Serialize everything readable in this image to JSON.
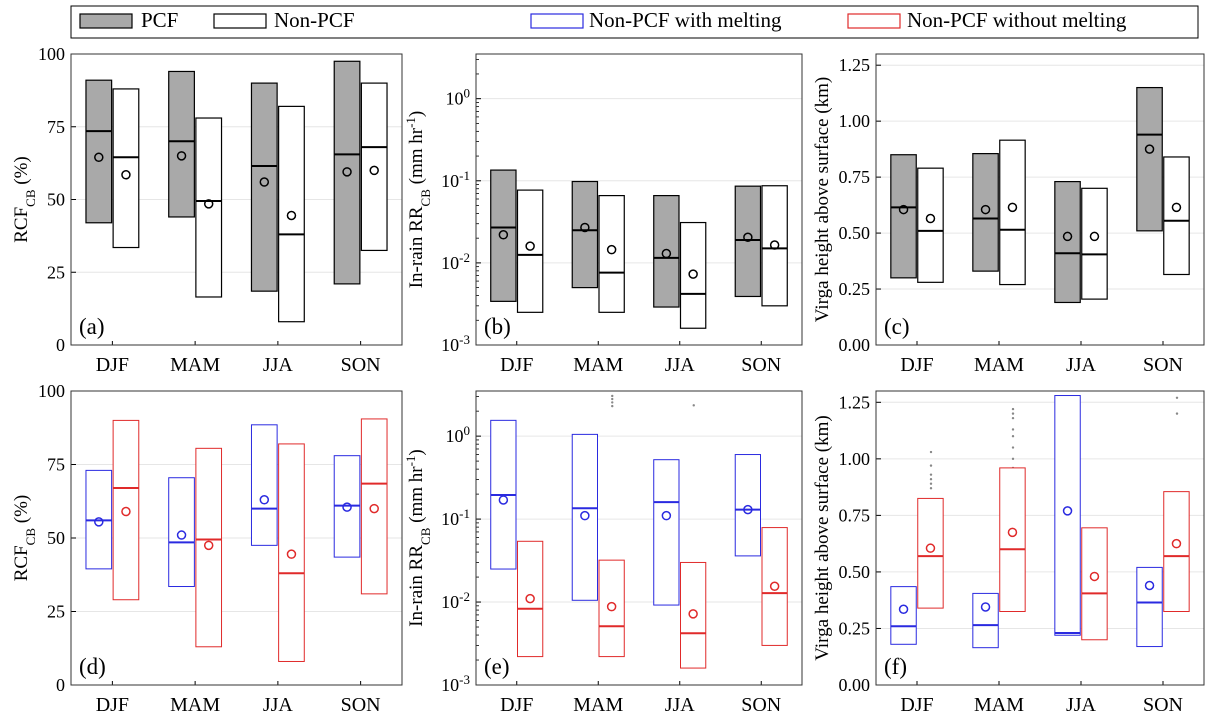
{
  "legend": {
    "items": [
      {
        "label": "PCF",
        "fill": "#a9a9a9",
        "stroke": "#000000"
      },
      {
        "label": "Non-PCF",
        "fill": "#ffffff",
        "stroke": "#000000"
      },
      {
        "label": "Non-PCF with melting",
        "fill": "#ffffff",
        "stroke": "#2a2ae0"
      },
      {
        "label": "Non-PCF without melting",
        "fill": "#ffffff",
        "stroke": "#e02a2a"
      }
    ]
  },
  "colors": {
    "pcf_fill": "#a9a9a9",
    "black": "#000000",
    "blue": "#2a2ae0",
    "red": "#e02a2a",
    "outlier": "#888888"
  },
  "chart_data": [
    {
      "id": "a",
      "type": "box",
      "panel_label": "(a)",
      "ylabel": "RCF",
      "ylabel_sub": "CB",
      "ylabel_suffix": " (%)",
      "scale": "linear",
      "ylim": [
        0,
        100
      ],
      "yticks": [
        {
          "v": 0,
          "t": "0"
        },
        {
          "v": 25,
          "t": "25"
        },
        {
          "v": 50,
          "t": "50"
        },
        {
          "v": 75,
          "t": "75"
        },
        {
          "v": 100,
          "t": "100"
        }
      ],
      "categories": [
        "DJF",
        "MAM",
        "JJA",
        "SON"
      ],
      "series": [
        {
          "name": "PCF",
          "fill": "#a9a9a9",
          "stroke": "#000000",
          "boxes": [
            {
              "q1": 42,
              "q3": 91,
              "median": 73.5,
              "mean": 64.5
            },
            {
              "q1": 44,
              "q3": 94,
              "median": 70,
              "mean": 65
            },
            {
              "q1": 18.5,
              "q3": 90,
              "median": 61.5,
              "mean": 56
            },
            {
              "q1": 21,
              "q3": 97.5,
              "median": 65.5,
              "mean": 59.5
            }
          ]
        },
        {
          "name": "Non-PCF",
          "fill": "#ffffff",
          "stroke": "#000000",
          "boxes": [
            {
              "q1": 33.5,
              "q3": 88,
              "median": 64.5,
              "mean": 58.5
            },
            {
              "q1": 16.5,
              "q3": 78,
              "median": 49.5,
              "mean": 48.5
            },
            {
              "q1": 8,
              "q3": 82,
              "median": 38,
              "mean": 44.5
            },
            {
              "q1": 32.5,
              "q3": 90,
              "median": 68,
              "mean": 60
            }
          ]
        }
      ]
    },
    {
      "id": "b",
      "type": "box",
      "panel_label": "(b)",
      "ylabel": "In-rain RR",
      "ylabel_sub": "CB",
      "ylabel_suffix": " (mm hr",
      "ylabel_sup": "-1",
      "ylabel_end": ")",
      "scale": "log",
      "ylim": [
        0.001,
        3.5
      ],
      "yticks": [
        {
          "v": 0.001,
          "t": "10",
          "e": "-3"
        },
        {
          "v": 0.01,
          "t": "10",
          "e": "-2"
        },
        {
          "v": 0.1,
          "t": "10",
          "e": "-1"
        },
        {
          "v": 1,
          "t": "10",
          "e": "0"
        }
      ],
      "categories": [
        "DJF",
        "MAM",
        "JJA",
        "SON"
      ],
      "series": [
        {
          "name": "PCF",
          "fill": "#a9a9a9",
          "stroke": "#000000",
          "boxes": [
            {
              "q1": 0.0034,
              "q3": 0.135,
              "median": 0.027,
              "mean": 0.022
            },
            {
              "q1": 0.005,
              "q3": 0.098,
              "median": 0.025,
              "mean": 0.027
            },
            {
              "q1": 0.0029,
              "q3": 0.066,
              "median": 0.0115,
              "mean": 0.013
            },
            {
              "q1": 0.0039,
              "q3": 0.086,
              "median": 0.019,
              "mean": 0.0205
            }
          ]
        },
        {
          "name": "Non-PCF",
          "fill": "#ffffff",
          "stroke": "#000000",
          "boxes": [
            {
              "q1": 0.0025,
              "q3": 0.077,
              "median": 0.0125,
              "mean": 0.016
            },
            {
              "q1": 0.0025,
              "q3": 0.066,
              "median": 0.0076,
              "mean": 0.0145
            },
            {
              "q1": 0.0016,
              "q3": 0.031,
              "median": 0.0042,
              "mean": 0.0073
            },
            {
              "q1": 0.003,
              "q3": 0.087,
              "median": 0.015,
              "mean": 0.0165
            }
          ]
        }
      ]
    },
    {
      "id": "c",
      "type": "box",
      "panel_label": "(c)",
      "ylabel": "Virga height above surface (km)",
      "scale": "linear",
      "ylim": [
        0,
        1.3
      ],
      "yticks": [
        {
          "v": 0,
          "t": "0.00"
        },
        {
          "v": 0.25,
          "t": "0.25"
        },
        {
          "v": 0.5,
          "t": "0.50"
        },
        {
          "v": 0.75,
          "t": "0.75"
        },
        {
          "v": 1.0,
          "t": "1.00"
        },
        {
          "v": 1.25,
          "t": "1.25"
        }
      ],
      "categories": [
        "DJF",
        "MAM",
        "JJA",
        "SON"
      ],
      "series": [
        {
          "name": "PCF",
          "fill": "#a9a9a9",
          "stroke": "#000000",
          "boxes": [
            {
              "q1": 0.3,
              "q3": 0.85,
              "median": 0.615,
              "mean": 0.605
            },
            {
              "q1": 0.33,
              "q3": 0.855,
              "median": 0.565,
              "mean": 0.605
            },
            {
              "q1": 0.19,
              "q3": 0.73,
              "median": 0.41,
              "mean": 0.485
            },
            {
              "q1": 0.51,
              "q3": 1.15,
              "median": 0.94,
              "mean": 0.875
            }
          ]
        },
        {
          "name": "Non-PCF",
          "fill": "#ffffff",
          "stroke": "#000000",
          "boxes": [
            {
              "q1": 0.28,
              "q3": 0.79,
              "median": 0.51,
              "mean": 0.565
            },
            {
              "q1": 0.27,
              "q3": 0.915,
              "median": 0.515,
              "mean": 0.615
            },
            {
              "q1": 0.205,
              "q3": 0.7,
              "median": 0.405,
              "mean": 0.485
            },
            {
              "q1": 0.315,
              "q3": 0.84,
              "median": 0.555,
              "mean": 0.615
            }
          ]
        }
      ]
    },
    {
      "id": "d",
      "type": "box",
      "panel_label": "(d)",
      "ylabel": "RCF",
      "ylabel_sub": "CB",
      "ylabel_suffix": " (%)",
      "scale": "linear",
      "ylim": [
        0,
        100
      ],
      "yticks": [
        {
          "v": 0,
          "t": "0"
        },
        {
          "v": 25,
          "t": "25"
        },
        {
          "v": 50,
          "t": "50"
        },
        {
          "v": 75,
          "t": "75"
        },
        {
          "v": 100,
          "t": "100"
        }
      ],
      "categories": [
        "DJF",
        "MAM",
        "JJA",
        "SON"
      ],
      "series": [
        {
          "name": "Non-PCF with melting",
          "fill": "#ffffff",
          "stroke": "#2a2ae0",
          "boxes": [
            {
              "q1": 39.5,
              "q3": 73,
              "median": 56,
              "mean": 55.5
            },
            {
              "q1": 33.5,
              "q3": 70.5,
              "median": 48.5,
              "mean": 51
            },
            {
              "q1": 47.5,
              "q3": 88.5,
              "median": 60,
              "mean": 63
            },
            {
              "q1": 43.5,
              "q3": 78,
              "median": 61,
              "mean": 60.5
            }
          ]
        },
        {
          "name": "Non-PCF without melting",
          "fill": "#ffffff",
          "stroke": "#e02a2a",
          "boxes": [
            {
              "q1": 29,
              "q3": 90,
              "median": 67,
              "mean": 59
            },
            {
              "q1": 13,
              "q3": 80.5,
              "median": 49.5,
              "mean": 47.5
            },
            {
              "q1": 8,
              "q3": 82,
              "median": 38,
              "mean": 44.5
            },
            {
              "q1": 31,
              "q3": 90.5,
              "median": 68.5,
              "mean": 60
            }
          ]
        }
      ]
    },
    {
      "id": "e",
      "type": "box",
      "panel_label": "(e)",
      "ylabel": "In-rain RR",
      "ylabel_sub": "CB",
      "ylabel_suffix": " (mm hr",
      "ylabel_sup": "-1",
      "ylabel_end": ")",
      "scale": "log",
      "ylim": [
        0.001,
        3.5
      ],
      "yticks": [
        {
          "v": 0.001,
          "t": "10",
          "e": "-3"
        },
        {
          "v": 0.01,
          "t": "10",
          "e": "-2"
        },
        {
          "v": 0.1,
          "t": "10",
          "e": "-1"
        },
        {
          "v": 1,
          "t": "10",
          "e": "0"
        }
      ],
      "categories": [
        "DJF",
        "MAM",
        "JJA",
        "SON"
      ],
      "series": [
        {
          "name": "Non-PCF with melting",
          "fill": "#ffffff",
          "stroke": "#2a2ae0",
          "boxes": [
            {
              "q1": 0.025,
              "q3": 1.55,
              "median": 0.195,
              "mean": 0.17
            },
            {
              "q1": 0.0105,
              "q3": 1.05,
              "median": 0.135,
              "mean": 0.11
            },
            {
              "q1": 0.0092,
              "q3": 0.52,
              "median": 0.16,
              "mean": 0.11
            },
            {
              "q1": 0.036,
              "q3": 0.6,
              "median": 0.13,
              "mean": 0.13
            }
          ]
        },
        {
          "name": "Non-PCF without melting",
          "fill": "#ffffff",
          "stroke": "#e02a2a",
          "boxes": [
            {
              "q1": 0.0022,
              "q3": 0.054,
              "median": 0.0083,
              "mean": 0.011
            },
            {
              "q1": 0.0022,
              "q3": 0.032,
              "median": 0.0051,
              "mean": 0.0088
            },
            {
              "q1": 0.0016,
              "q3": 0.03,
              "median": 0.0042,
              "mean": 0.0072
            },
            {
              "q1": 0.003,
              "q3": 0.079,
              "median": 0.0128,
              "mean": 0.0155
            }
          ]
        }
      ],
      "outliers": [
        {
          "cat": 1,
          "values": [
            2.3,
            2.55,
            2.8,
            3.05
          ]
        },
        {
          "cat": 2,
          "values": [
            2.35
          ]
        }
      ]
    },
    {
      "id": "f",
      "type": "box",
      "panel_label": "(f)",
      "ylabel": "Virga height above surface (km)",
      "scale": "linear",
      "ylim": [
        0,
        1.3
      ],
      "yticks": [
        {
          "v": 0,
          "t": "0.00"
        },
        {
          "v": 0.25,
          "t": "0.25"
        },
        {
          "v": 0.5,
          "t": "0.50"
        },
        {
          "v": 0.75,
          "t": "0.75"
        },
        {
          "v": 1.0,
          "t": "1.00"
        },
        {
          "v": 1.25,
          "t": "1.25"
        }
      ],
      "categories": [
        "DJF",
        "MAM",
        "JJA",
        "SON"
      ],
      "series": [
        {
          "name": "Non-PCF with melting",
          "fill": "#ffffff",
          "stroke": "#2a2ae0",
          "boxes": [
            {
              "q1": 0.18,
              "q3": 0.435,
              "median": 0.26,
              "mean": 0.335
            },
            {
              "q1": 0.165,
              "q3": 0.405,
              "median": 0.265,
              "mean": 0.345
            },
            {
              "q1": 0.22,
              "q3": 1.28,
              "median": 0.23,
              "mean": 0.77
            },
            {
              "q1": 0.17,
              "q3": 0.52,
              "median": 0.365,
              "mean": 0.44
            }
          ]
        },
        {
          "name": "Non-PCF without melting",
          "fill": "#ffffff",
          "stroke": "#e02a2a",
          "boxes": [
            {
              "q1": 0.34,
              "q3": 0.825,
              "median": 0.57,
              "mean": 0.605
            },
            {
              "q1": 0.325,
              "q3": 0.96,
              "median": 0.6,
              "mean": 0.675
            },
            {
              "q1": 0.2,
              "q3": 0.695,
              "median": 0.405,
              "mean": 0.48
            },
            {
              "q1": 0.325,
              "q3": 0.855,
              "median": 0.57,
              "mean": 0.625
            }
          ]
        }
      ],
      "outliers": [
        {
          "cat": 0,
          "values": [
            0.87,
            0.89,
            0.91,
            0.93,
            0.97,
            1.03
          ]
        },
        {
          "cat": 1,
          "values": [
            0.77,
            0.8,
            0.83,
            0.86,
            0.89,
            0.92,
            0.94,
            0.96,
            1.0,
            1.05,
            1.1,
            1.13,
            1.18,
            1.2,
            1.22
          ]
        },
        {
          "cat": 3,
          "values": [
            1.2,
            1.27
          ]
        }
      ]
    }
  ]
}
